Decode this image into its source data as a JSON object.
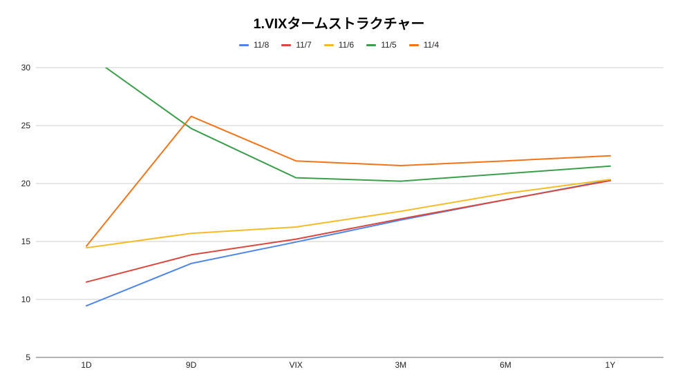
{
  "chart_data": {
    "type": "line",
    "title": "1.VIXタームストラクチャー",
    "xlabel": "",
    "ylabel": "",
    "categories": [
      "1D",
      "9D",
      "VIX",
      "3M",
      "6M",
      "1Y"
    ],
    "ylim": [
      5,
      30
    ],
    "yticks": [
      5,
      10,
      15,
      20,
      25,
      30
    ],
    "grid": true,
    "legend_position": "top",
    "series": [
      {
        "name": "11/8",
        "color": "#4e86e8",
        "values": [
          9.45,
          13.1,
          14.95,
          16.85,
          18.6,
          20.3
        ]
      },
      {
        "name": "11/7",
        "color": "#d9473d",
        "values": [
          11.5,
          13.85,
          15.2,
          16.95,
          18.6,
          20.25
        ]
      },
      {
        "name": "11/6",
        "color": "#f4bb23",
        "values": [
          14.45,
          15.7,
          16.25,
          17.6,
          19.15,
          20.35
        ]
      },
      {
        "name": "11/5",
        "color": "#3a9d4a",
        "values": [
          31.2,
          24.75,
          20.5,
          20.2,
          20.85,
          21.5
        ]
      },
      {
        "name": "11/4",
        "color": "#f27418",
        "values": [
          14.6,
          25.8,
          21.95,
          21.55,
          21.95,
          22.4
        ]
      }
    ]
  }
}
